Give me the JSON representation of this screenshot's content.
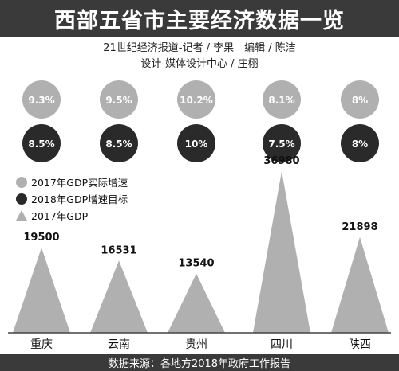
{
  "header": {
    "title": "西部五省市主要经济数据一览"
  },
  "credits": {
    "line1": "21世纪经济报道-记者 / 李果　编辑 / 陈洁",
    "line2": "设计-媒体设计中心 / 庄栩"
  },
  "legend": {
    "items": [
      "2017年GDP实际增速",
      "2018年GDP增速目标",
      "2017年GDP"
    ]
  },
  "footer": {
    "source": "数据来源：各地方2018年政府工作报告"
  },
  "colors": {
    "bar_bg": "#3a3a3a",
    "light_circle": "#b0b0b0",
    "dark_circle": "#2a2a2a",
    "triangle": "#b0b0b0"
  },
  "chart_data": {
    "type": "bar",
    "categories": [
      "重庆",
      "云南",
      "贵州",
      "四川",
      "陕西"
    ],
    "series": [
      {
        "name": "2017年GDP实际增速",
        "values": [
          "9.3%",
          "9.5%",
          "10.2%",
          "8.1%",
          "8%"
        ]
      },
      {
        "name": "2018年GDP增速目标",
        "values": [
          "8.5%",
          "8.5%",
          "10%",
          "7.5%",
          "8%"
        ]
      },
      {
        "name": "2017年GDP",
        "values": [
          19500,
          16531,
          13540,
          36980,
          21898
        ]
      }
    ]
  }
}
